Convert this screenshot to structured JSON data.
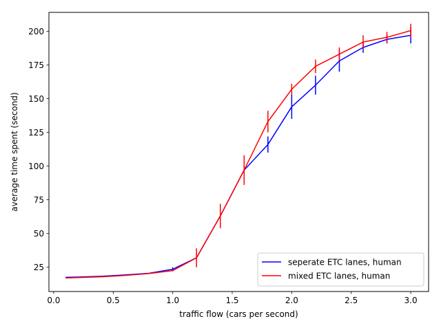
{
  "chart_data": {
    "type": "line",
    "title": "",
    "xlabel": "traffic flow (cars per second)",
    "ylabel": "average time spent (second)",
    "xlim": [
      -0.04,
      3.15
    ],
    "ylim": [
      7,
      214
    ],
    "xticks": [
      0.0,
      0.5,
      1.0,
      1.5,
      2.0,
      2.5,
      3.0
    ],
    "xtick_labels": [
      "0.0",
      "0.5",
      "1.0",
      "1.5",
      "2.0",
      "2.5",
      "3.0"
    ],
    "yticks": [
      25,
      50,
      75,
      100,
      125,
      150,
      175,
      200
    ],
    "ytick_labels": [
      "25",
      "50",
      "75",
      "100",
      "125",
      "150",
      "175",
      "200"
    ],
    "grid": false,
    "legend_position": "bottom-right",
    "series": [
      {
        "name": "seperate ETC lanes, human",
        "color": "#0000ff",
        "x": [
          0.1,
          0.2,
          0.4,
          0.6,
          0.8,
          1.0,
          1.2,
          1.4,
          1.6,
          1.8,
          2.0,
          2.2,
          2.4,
          2.6,
          2.8,
          3.0
        ],
        "y": [
          17.5,
          17.7,
          18.3,
          19.3,
          20.5,
          23.5,
          32,
          63,
          97,
          116,
          144,
          160,
          178,
          188,
          194,
          197
        ],
        "err": [
          0,
          0,
          0,
          0,
          0,
          1.5,
          0,
          0,
          0,
          6,
          9,
          7,
          8,
          4,
          3,
          6
        ]
      },
      {
        "name": "mixed ETC lanes, human",
        "color": "#ff0000",
        "x": [
          0.1,
          0.2,
          0.4,
          0.6,
          0.8,
          1.0,
          1.2,
          1.4,
          1.6,
          1.8,
          2.0,
          2.2,
          2.4,
          2.6,
          2.8,
          3.0
        ],
        "y": [
          17,
          17.3,
          17.9,
          18.9,
          20.3,
          22.5,
          32,
          63,
          97,
          133,
          157,
          174,
          183,
          192,
          195.5,
          200.5
        ],
        "err": [
          0,
          0,
          0,
          0,
          0,
          0,
          7,
          9,
          11,
          8,
          4,
          5,
          5,
          5,
          4,
          5
        ]
      }
    ]
  }
}
